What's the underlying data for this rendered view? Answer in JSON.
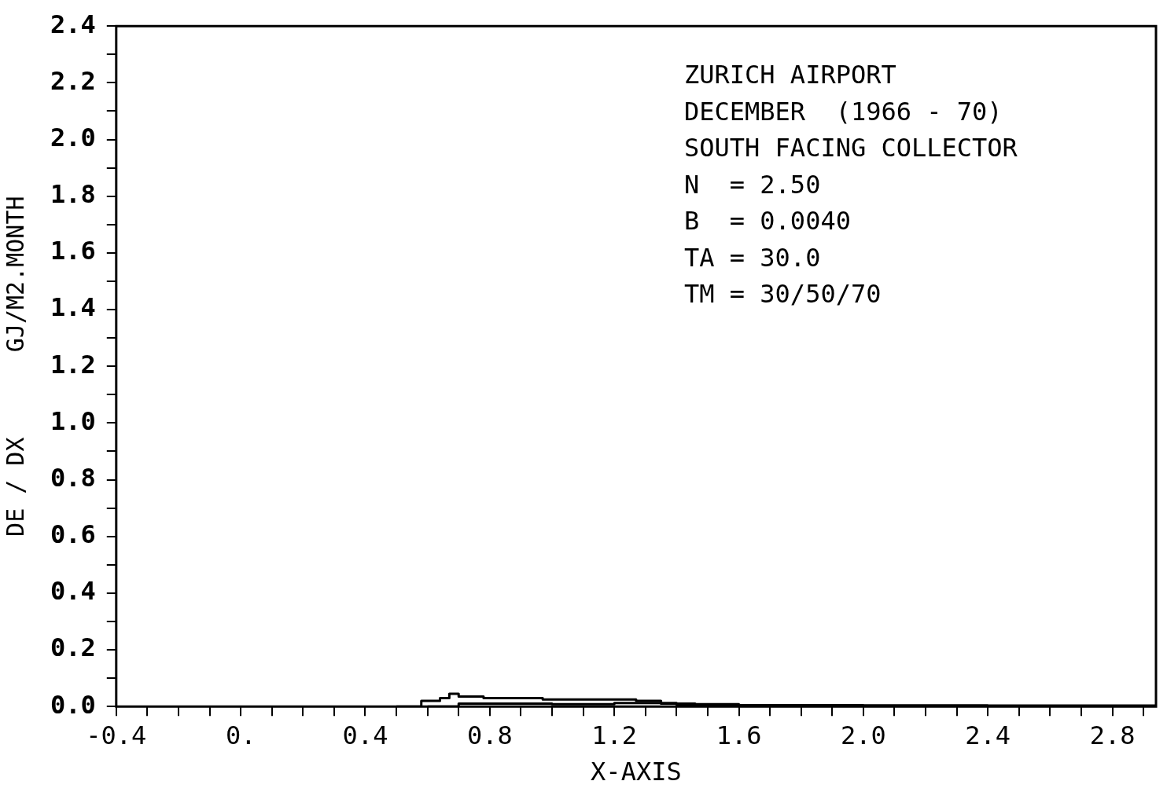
{
  "chart_data": {
    "type": "step",
    "xlabel": "X-AXIS",
    "ylabel": "DE / DX      GJ/M2.MONTH",
    "annotations": [
      "ZURICH AIRPORT",
      "DECEMBER  (1966 - 70)",
      "SOUTH FACING COLLECTOR",
      "N  = 2.50",
      "B  = 0.0040",
      "TA = 30.0",
      "TM = 30/50/70"
    ],
    "series": [
      {
        "color": "#000000",
        "x": [
          0.5,
          0.58,
          0.64,
          0.67,
          0.7,
          0.78,
          0.88,
          0.97,
          1.07,
          1.17,
          1.27,
          1.35,
          1.46,
          1.6,
          1.8,
          2.0,
          2.4,
          2.8,
          2.94
        ],
        "values": [
          0,
          0.02,
          0.03,
          0.045,
          0.035,
          0.03,
          0.03,
          0.025,
          0.025,
          0.025,
          0.02,
          0.01,
          0.008,
          0.005,
          0.005,
          0.004,
          0.003,
          0.003,
          0.003
        ]
      },
      {
        "color": "#000000",
        "x": [
          0.6,
          0.7,
          0.8,
          1.0,
          1.2,
          1.4,
          1.6,
          2.0,
          2.4,
          2.8,
          2.94
        ],
        "values": [
          0,
          0.01,
          0.01,
          0.008,
          0.012,
          0.006,
          0.003,
          0.002,
          0.002,
          0.002,
          0.002
        ]
      }
    ],
    "xlim": [
      -0.4,
      2.94
    ],
    "ylim": [
      0,
      2.4
    ],
    "xticks": [
      {
        "value": -0.4,
        "label": "-0.4"
      },
      {
        "value": -0.3,
        "label": null
      },
      {
        "value": -0.2,
        "label": null
      },
      {
        "value": -0.1,
        "label": null
      },
      {
        "value": 0,
        "label": "0."
      },
      {
        "value": 0.1,
        "label": null
      },
      {
        "value": 0.2,
        "label": null
      },
      {
        "value": 0.3,
        "label": null
      },
      {
        "value": 0.4,
        "label": "0.4"
      },
      {
        "value": 0.5,
        "label": null
      },
      {
        "value": 0.6,
        "label": null
      },
      {
        "value": 0.7,
        "label": null
      },
      {
        "value": 0.8,
        "label": "0.8"
      },
      {
        "value": 0.9,
        "label": null
      },
      {
        "value": 1.0,
        "label": null
      },
      {
        "value": 1.1,
        "label": null
      },
      {
        "value": 1.2,
        "label": "1.2"
      },
      {
        "value": 1.3,
        "label": null
      },
      {
        "value": 1.4,
        "label": null
      },
      {
        "value": 1.5,
        "label": null
      },
      {
        "value": 1.6,
        "label": "1.6"
      },
      {
        "value": 1.7,
        "label": null
      },
      {
        "value": 1.8,
        "label": null
      },
      {
        "value": 1.9,
        "label": null
      },
      {
        "value": 2.0,
        "label": "2.0"
      },
      {
        "value": 2.1,
        "label": null
      },
      {
        "value": 2.2,
        "label": null
      },
      {
        "value": 2.3,
        "label": null
      },
      {
        "value": 2.4,
        "label": "2.4"
      },
      {
        "value": 2.5,
        "label": null
      },
      {
        "value": 2.6,
        "label": null
      },
      {
        "value": 2.7,
        "label": null
      },
      {
        "value": 2.8,
        "label": "2.8"
      },
      {
        "value": 2.9,
        "label": null
      }
    ],
    "yticks": [
      {
        "value": 0,
        "label": "0.0"
      },
      {
        "value": 0.1,
        "label": null
      },
      {
        "value": 0.2,
        "label": "0.2"
      },
      {
        "value": 0.3,
        "label": null
      },
      {
        "value": 0.4,
        "label": "0.4"
      },
      {
        "value": 0.5,
        "label": null
      },
      {
        "value": 0.6,
        "label": "0.6"
      },
      {
        "value": 0.7,
        "label": null
      },
      {
        "value": 0.8,
        "label": "0.8"
      },
      {
        "value": 0.9,
        "label": null
      },
      {
        "value": 1.0,
        "label": "1.0"
      },
      {
        "value": 1.1,
        "label": null
      },
      {
        "value": 1.2,
        "label": "1.2"
      },
      {
        "value": 1.3,
        "label": null
      },
      {
        "value": 1.4,
        "label": "1.4"
      },
      {
        "value": 1.5,
        "label": null
      },
      {
        "value": 1.6,
        "label": "1.6"
      },
      {
        "value": 1.7,
        "label": null
      },
      {
        "value": 1.8,
        "label": "1.8"
      },
      {
        "value": 1.9,
        "label": null
      },
      {
        "value": 2.0,
        "label": "2.0"
      },
      {
        "value": 2.1,
        "label": null
      },
      {
        "value": 2.2,
        "label": "2.2"
      },
      {
        "value": 2.3,
        "label": null
      },
      {
        "value": 2.4,
        "label": "2.4"
      }
    ]
  }
}
